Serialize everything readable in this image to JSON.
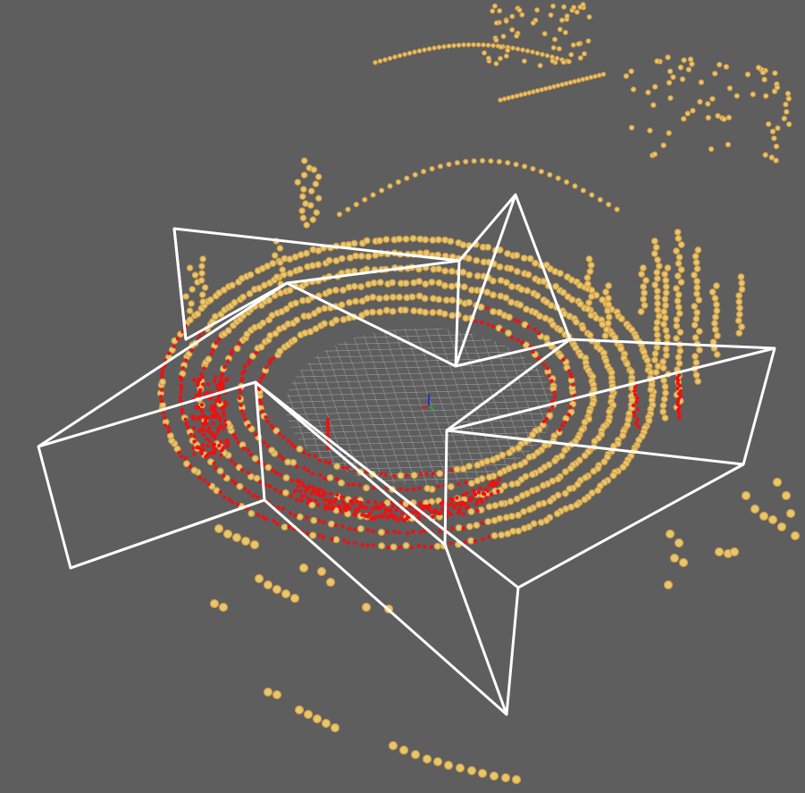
{
  "viewer": {
    "background_color": "#5e5e5e",
    "grid_color": "#9a9a9a",
    "frustum_color": "#ffffff",
    "near_points_color": "#ee1111",
    "far_points_fill": "#e6c86a",
    "far_points_stroke": "#d09a4a",
    "axis_colors": {
      "x": "#cc2222",
      "y": "#22aa22",
      "z": "#2233cc"
    },
    "camera_frustum_count": 5,
    "lidar_ring_count": 6
  }
}
